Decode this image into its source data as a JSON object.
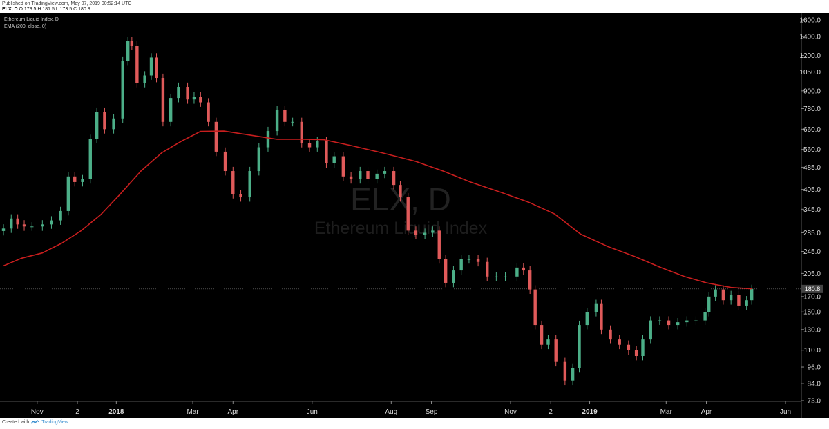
{
  "header": {
    "published": "Published on TradingView.com, May 07, 2019 00:52:14 UTC",
    "symbol": "ELX, D",
    "ohlc": "O:173.5 H:181.5 L:173.5 C:180.8"
  },
  "legend": {
    "title": "Ethereum Liquid Index, D",
    "indicator": "EMA (200, close, 0)"
  },
  "watermark": {
    "symbol": "ELX, D",
    "name": "Ethereum Liquid Index"
  },
  "last_price": "180.8",
  "footer": {
    "created_with": "Created with",
    "brand": "TradingView"
  },
  "colors": {
    "background": "#000000",
    "up": "#4caf88",
    "down": "#e05a5a",
    "ema": "#c81e1e",
    "price_tag": "#444444"
  },
  "chart_data": {
    "type": "line",
    "scale": "log",
    "y_ticks": [
      "1600.0",
      "1400.0",
      "1200.0",
      "1050.0",
      "900.0",
      "780.0",
      "660.0",
      "560.0",
      "485.0",
      "405.0",
      "345.0",
      "285.0",
      "245.0",
      "205.0",
      "170.0",
      "150.0",
      "130.0",
      "110.0",
      "96.0",
      "84.0",
      "73.0"
    ],
    "x_ticks": [
      "Nov",
      "2",
      "2018",
      "Mar",
      "Apr",
      "Jun",
      "Aug",
      "Sep",
      "Nov",
      "2",
      "2019",
      "Mar",
      "Apr",
      "Jun"
    ],
    "x_ticks_bold": [
      "2018",
      "2019"
    ],
    "series": [
      {
        "name": "ELX, D",
        "values": [
          [
            "2017-10-06",
            295
          ],
          [
            "2017-10-12",
            320
          ],
          [
            "2017-10-17",
            305
          ],
          [
            "2017-10-22",
            300
          ],
          [
            "2017-10-28",
            300
          ],
          [
            "2017-11-05",
            305
          ],
          [
            "2017-11-12",
            315
          ],
          [
            "2017-11-19",
            340
          ],
          [
            "2017-11-25",
            450
          ],
          [
            "2017-11-30",
            430
          ],
          [
            "2017-12-06",
            440
          ],
          [
            "2017-12-12",
            610
          ],
          [
            "2017-12-17",
            760
          ],
          [
            "2017-12-23",
            660
          ],
          [
            "2017-12-30",
            720
          ],
          [
            "2018-01-06",
            1150
          ],
          [
            "2018-01-10",
            1350
          ],
          [
            "2018-01-13",
            1300
          ],
          [
            "2018-01-17",
            960
          ],
          [
            "2018-01-23",
            1020
          ],
          [
            "2018-01-28",
            1180
          ],
          [
            "2018-02-01",
            1000
          ],
          [
            "2018-02-06",
            700
          ],
          [
            "2018-02-12",
            850
          ],
          [
            "2018-02-18",
            930
          ],
          [
            "2018-02-25",
            840
          ],
          [
            "2018-03-02",
            860
          ],
          [
            "2018-03-07",
            820
          ],
          [
            "2018-03-13",
            700
          ],
          [
            "2018-03-19",
            550
          ],
          [
            "2018-03-26",
            470
          ],
          [
            "2018-04-01",
            390
          ],
          [
            "2018-04-07",
            380
          ],
          [
            "2018-04-14",
            470
          ],
          [
            "2018-04-21",
            570
          ],
          [
            "2018-04-28",
            650
          ],
          [
            "2018-05-05",
            770
          ],
          [
            "2018-05-11",
            700
          ],
          [
            "2018-05-17",
            700
          ],
          [
            "2018-05-24",
            590
          ],
          [
            "2018-05-30",
            570
          ],
          [
            "2018-06-05",
            600
          ],
          [
            "2018-06-12",
            500
          ],
          [
            "2018-06-18",
            530
          ],
          [
            "2018-06-25",
            450
          ],
          [
            "2018-07-01",
            440
          ],
          [
            "2018-07-08",
            470
          ],
          [
            "2018-07-14",
            440
          ],
          [
            "2018-07-21",
            460
          ],
          [
            "2018-07-27",
            470
          ],
          [
            "2018-08-03",
            420
          ],
          [
            "2018-08-08",
            380
          ],
          [
            "2018-08-14",
            290
          ],
          [
            "2018-08-20",
            280
          ],
          [
            "2018-08-27",
            285
          ],
          [
            "2018-09-02",
            290
          ],
          [
            "2018-09-07",
            230
          ],
          [
            "2018-09-12",
            190
          ],
          [
            "2018-09-18",
            210
          ],
          [
            "2018-09-24",
            230
          ],
          [
            "2018-09-30",
            230
          ],
          [
            "2018-10-07",
            225
          ],
          [
            "2018-10-14",
            200
          ],
          [
            "2018-10-21",
            200
          ],
          [
            "2018-10-28",
            200
          ],
          [
            "2018-11-06",
            215
          ],
          [
            "2018-11-11",
            210
          ],
          [
            "2018-11-16",
            180
          ],
          [
            "2018-11-20",
            135
          ],
          [
            "2018-11-25",
            115
          ],
          [
            "2018-11-30",
            120
          ],
          [
            "2018-12-06",
            100
          ],
          [
            "2018-12-13",
            86
          ],
          [
            "2018-12-19",
            95
          ],
          [
            "2018-12-24",
            135
          ],
          [
            "2018-12-30",
            150
          ],
          [
            "2019-01-06",
            160
          ],
          [
            "2019-01-10",
            130
          ],
          [
            "2019-01-17",
            120
          ],
          [
            "2019-01-24",
            115
          ],
          [
            "2019-01-31",
            110
          ],
          [
            "2019-02-06",
            105
          ],
          [
            "2019-02-11",
            120
          ],
          [
            "2019-02-17",
            140
          ],
          [
            "2019-02-24",
            140
          ],
          [
            "2019-03-03",
            135
          ],
          [
            "2019-03-10",
            138
          ],
          [
            "2019-03-17",
            140
          ],
          [
            "2019-03-24",
            140
          ],
          [
            "2019-03-31",
            150
          ],
          [
            "2019-04-03",
            170
          ],
          [
            "2019-04-08",
            180
          ],
          [
            "2019-04-14",
            165
          ],
          [
            "2019-04-20",
            172
          ],
          [
            "2019-04-26",
            158
          ],
          [
            "2019-05-02",
            165
          ],
          [
            "2019-05-06",
            180.8
          ]
        ]
      },
      {
        "name": "EMA (200, close, 0)",
        "values": [
          [
            "2017-10-06",
            218
          ],
          [
            "2017-10-20",
            232
          ],
          [
            "2017-11-05",
            242
          ],
          [
            "2017-11-20",
            262
          ],
          [
            "2017-12-05",
            290
          ],
          [
            "2017-12-20",
            330
          ],
          [
            "2018-01-04",
            390
          ],
          [
            "2018-01-20",
            470
          ],
          [
            "2018-02-05",
            545
          ],
          [
            "2018-02-20",
            598
          ],
          [
            "2018-03-07",
            648
          ],
          [
            "2018-03-25",
            650
          ],
          [
            "2018-04-15",
            628
          ],
          [
            "2018-05-05",
            608
          ],
          [
            "2018-05-25",
            608
          ],
          [
            "2018-06-10",
            606
          ],
          [
            "2018-07-01",
            578
          ],
          [
            "2018-07-25",
            545
          ],
          [
            "2018-08-20",
            508
          ],
          [
            "2018-09-10",
            470
          ],
          [
            "2018-10-01",
            430
          ],
          [
            "2018-10-25",
            395
          ],
          [
            "2018-11-15",
            365
          ],
          [
            "2018-12-05",
            332
          ],
          [
            "2018-12-25",
            282
          ],
          [
            "2019-01-15",
            255
          ],
          [
            "2019-02-05",
            235
          ],
          [
            "2019-02-25",
            215
          ],
          [
            "2019-03-15",
            200
          ],
          [
            "2019-04-01",
            190
          ],
          [
            "2019-04-20",
            183
          ],
          [
            "2019-05-06",
            181
          ]
        ]
      }
    ]
  }
}
